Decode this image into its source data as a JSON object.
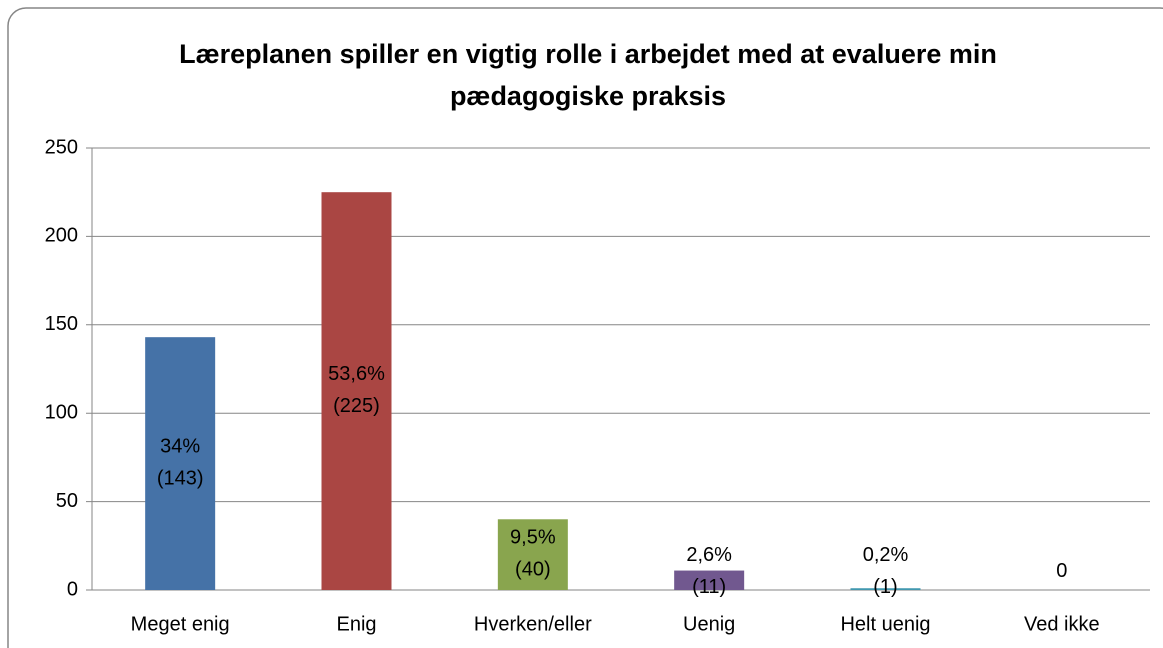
{
  "chart_data": {
    "type": "bar",
    "title": [
      "Læreplanen spiller en vigtig rolle i arbejdet med at evaluere min",
      "pædagogiske praksis"
    ],
    "categories": [
      "Meget enig",
      "Enig",
      "Hverken/eller",
      "Uenig",
      "Helt uenig",
      "Ved ikke"
    ],
    "values": [
      143,
      225,
      40,
      11,
      1,
      0
    ],
    "value_labels": [
      [
        "34%",
        "(143)"
      ],
      [
        "53,6%",
        "(225)"
      ],
      [
        "9,5%",
        "(40)"
      ],
      [
        "2,6%",
        "(11)"
      ],
      [
        "0,2%",
        "(1)"
      ],
      [
        "0"
      ]
    ],
    "colors": [
      "#4572a7",
      "#aa4643",
      "#89a54e",
      "#71588f",
      "#4198af",
      "#db843d"
    ],
    "ylim": [
      0,
      250
    ],
    "yticks": [
      0,
      50,
      100,
      150,
      200,
      250
    ],
    "grid": true
  }
}
